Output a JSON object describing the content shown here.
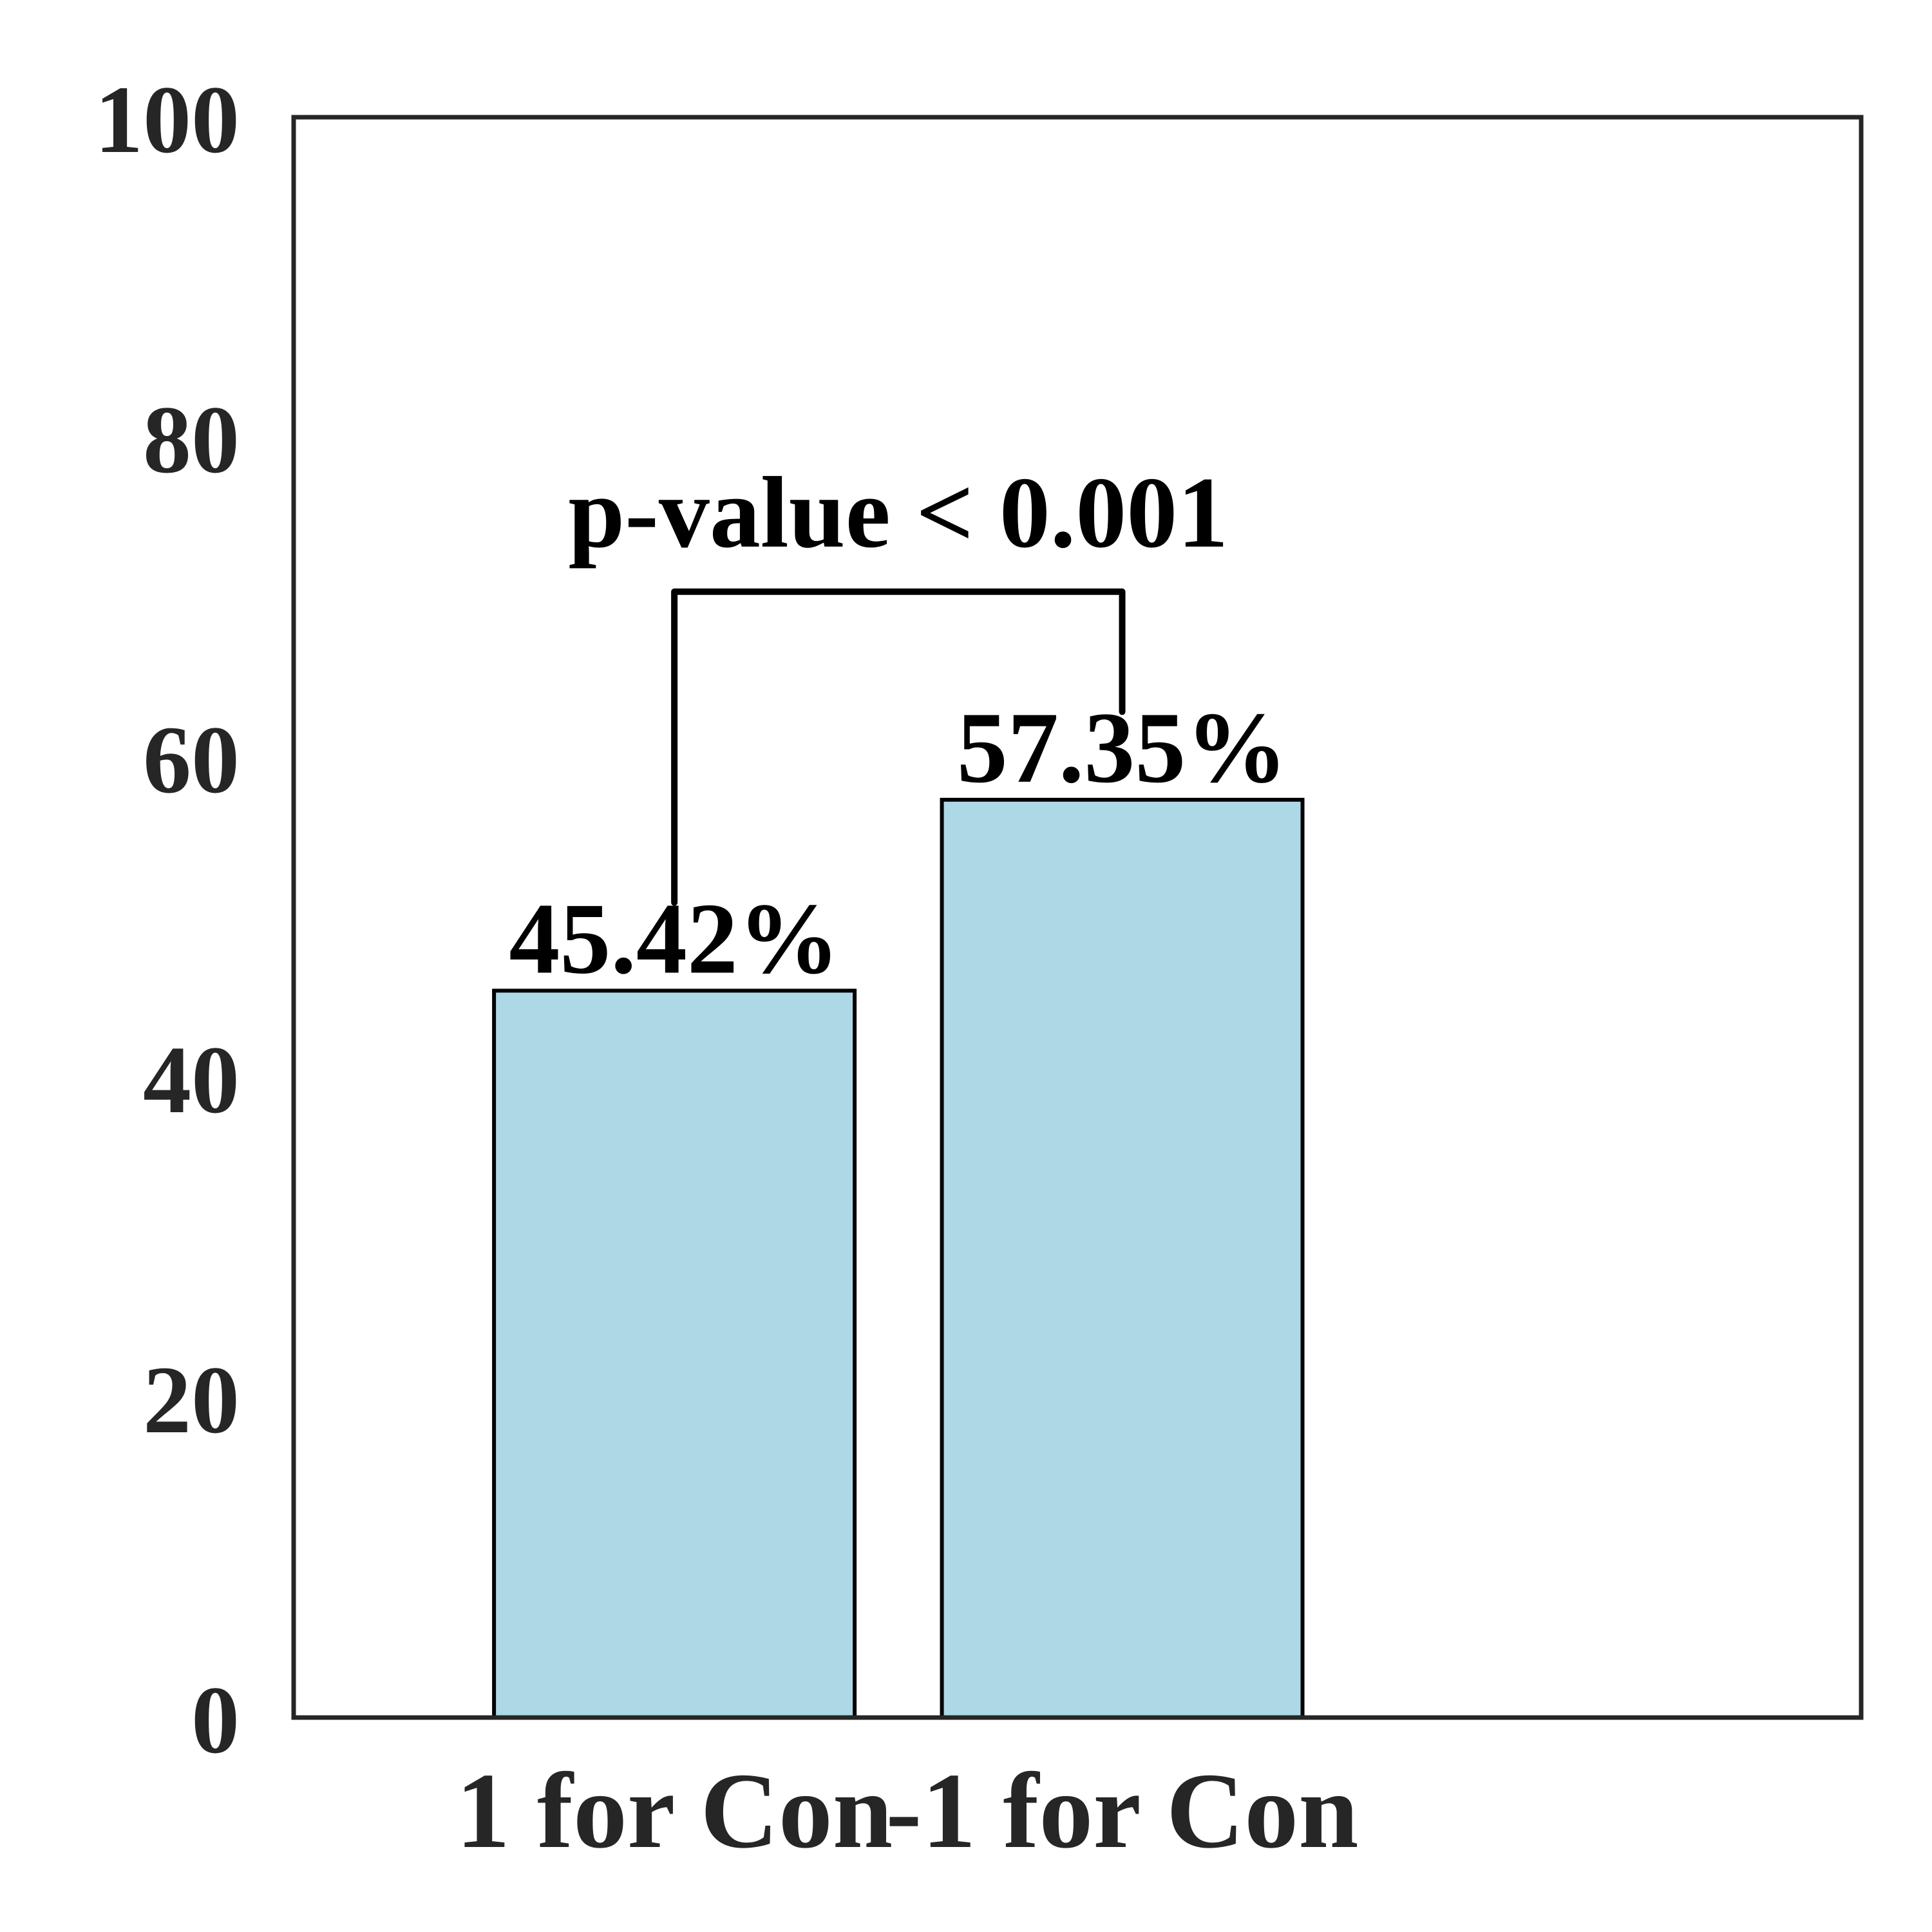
{
  "chart_data": {
    "type": "bar",
    "categories": [
      "1 for Con",
      "-1 for Con"
    ],
    "values": [
      45.42,
      57.35
    ],
    "data_labels": [
      "45.42%",
      "57.35%"
    ],
    "ylim": [
      0,
      100
    ],
    "yticks": [
      0,
      20,
      40,
      60,
      80,
      100
    ],
    "ytick_labels": [
      "0",
      "20",
      "40",
      "60",
      "80",
      "100"
    ],
    "bar_color": "#add8e6",
    "edge_color": "#000000",
    "grid": false,
    "annotation": {
      "text": "p-value < 0.001",
      "between": [
        0,
        1
      ]
    }
  }
}
